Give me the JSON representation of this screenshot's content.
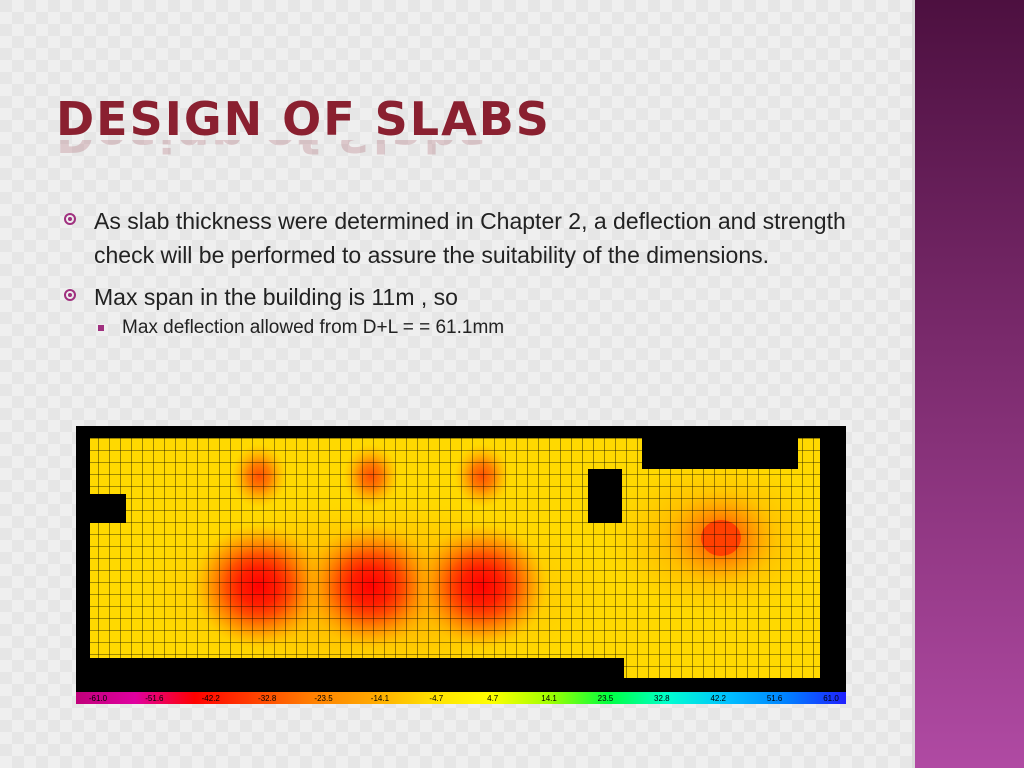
{
  "slide": {
    "title": "Design of Slabs",
    "bullets": [
      {
        "text": "As slab thickness were determined in Chapter 2, a deflection and strength check will be performed to assure the suitability of the dimensions."
      },
      {
        "text": "Max span in the building is 11m , so",
        "sub": [
          {
            "text": "Max deflection allowed from D+L =   = 61.1mm"
          }
        ]
      }
    ]
  },
  "contour_plot": {
    "legend_labels": [
      "-61.0",
      "-51.6",
      "-42.2",
      "-32.8",
      "-23.5",
      "-14.1",
      "-4.7",
      "4.7",
      "14.1",
      "23.5",
      "32.8",
      "42.2",
      "51.6",
      "61.0"
    ],
    "legend_colors": [
      "#c0007a",
      "#e000a0",
      "#ff0000",
      "#ff4000",
      "#ff8000",
      "#ffa800",
      "#ffe000",
      "#ffff00",
      "#a0ff00",
      "#00ff40",
      "#00ffd0",
      "#00c0ff",
      "#0080ff",
      "#2020ff"
    ]
  }
}
